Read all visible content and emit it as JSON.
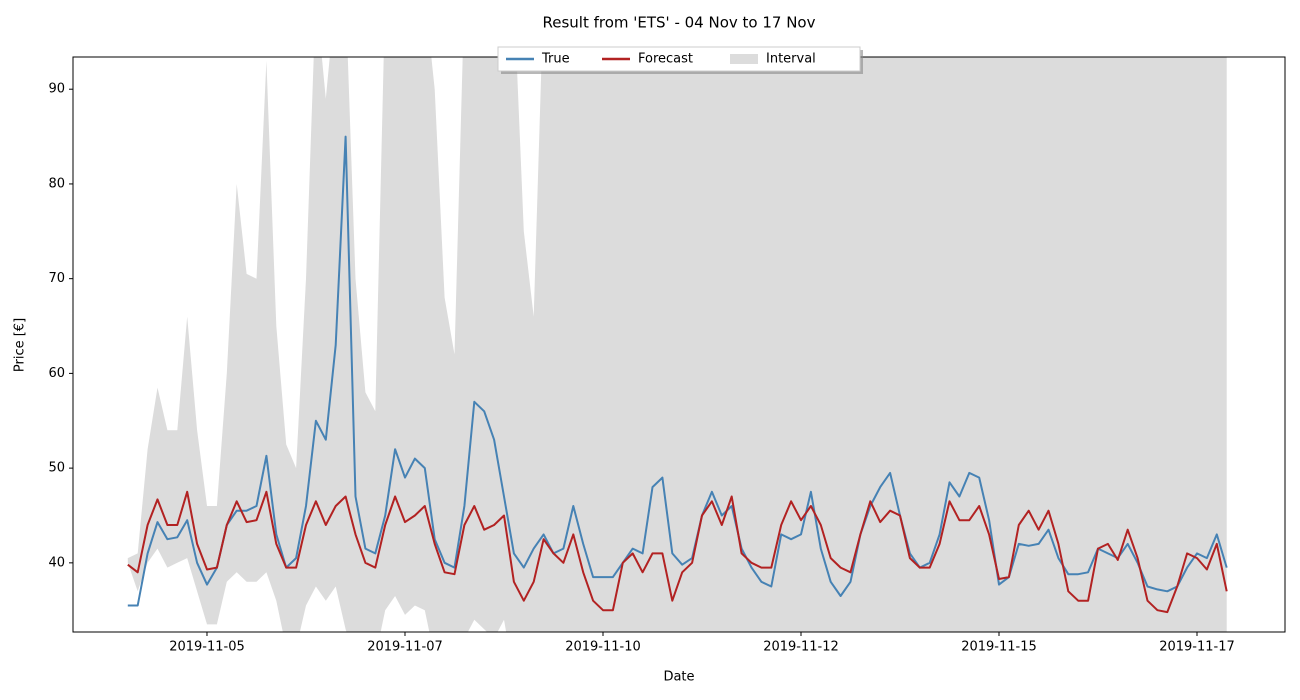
{
  "chart_data": {
    "type": "line",
    "title": "Result from 'ETS' - 04 Nov to 17 Nov",
    "xlabel": "Date",
    "ylabel": "Price [€]",
    "x": [
      "2019-11-04 00:00",
      "2019-11-04 03:00",
      "2019-11-04 06:00",
      "2019-11-04 09:00",
      "2019-11-04 12:00",
      "2019-11-04 15:00",
      "2019-11-04 18:00",
      "2019-11-04 21:00",
      "2019-11-05 00:00",
      "2019-11-05 03:00",
      "2019-11-05 06:00",
      "2019-11-05 09:00",
      "2019-11-05 12:00",
      "2019-11-05 15:00",
      "2019-11-05 18:00",
      "2019-11-05 21:00",
      "2019-11-06 00:00",
      "2019-11-06 03:00",
      "2019-11-06 06:00",
      "2019-11-06 09:00",
      "2019-11-06 12:00",
      "2019-11-06 15:00",
      "2019-11-06 18:00",
      "2019-11-06 21:00",
      "2019-11-07 00:00",
      "2019-11-07 03:00",
      "2019-11-07 06:00",
      "2019-11-07 09:00",
      "2019-11-07 12:00",
      "2019-11-07 15:00",
      "2019-11-07 18:00",
      "2019-11-07 21:00",
      "2019-11-08 00:00",
      "2019-11-08 03:00",
      "2019-11-08 06:00",
      "2019-11-08 09:00",
      "2019-11-08 12:00",
      "2019-11-08 15:00",
      "2019-11-08 18:00",
      "2019-11-08 21:00",
      "2019-11-09 00:00",
      "2019-11-09 03:00",
      "2019-11-09 06:00",
      "2019-11-09 09:00",
      "2019-11-09 12:00",
      "2019-11-09 15:00",
      "2019-11-09 18:00",
      "2019-11-09 21:00",
      "2019-11-10 00:00",
      "2019-11-10 03:00",
      "2019-11-10 06:00",
      "2019-11-10 09:00",
      "2019-11-10 12:00",
      "2019-11-10 15:00",
      "2019-11-10 18:00",
      "2019-11-10 21:00",
      "2019-11-11 00:00",
      "2019-11-11 03:00",
      "2019-11-11 06:00",
      "2019-11-11 09:00",
      "2019-11-11 12:00",
      "2019-11-11 15:00",
      "2019-11-11 18:00",
      "2019-11-11 21:00",
      "2019-11-12 00:00",
      "2019-11-12 03:00",
      "2019-11-12 06:00",
      "2019-11-12 09:00",
      "2019-11-12 12:00",
      "2019-11-12 15:00",
      "2019-11-12 18:00",
      "2019-11-12 21:00",
      "2019-11-13 00:00",
      "2019-11-13 03:00",
      "2019-11-13 06:00",
      "2019-11-13 09:00",
      "2019-11-13 12:00",
      "2019-11-13 15:00",
      "2019-11-13 18:00",
      "2019-11-13 21:00",
      "2019-11-14 00:00",
      "2019-11-14 03:00",
      "2019-11-14 06:00",
      "2019-11-14 09:00",
      "2019-11-14 12:00",
      "2019-11-14 15:00",
      "2019-11-14 18:00",
      "2019-11-14 21:00",
      "2019-11-15 00:00",
      "2019-11-15 03:00",
      "2019-11-15 06:00",
      "2019-11-15 09:00",
      "2019-11-15 12:00",
      "2019-11-15 15:00",
      "2019-11-15 18:00",
      "2019-11-15 21:00",
      "2019-11-16 00:00",
      "2019-11-16 03:00",
      "2019-11-16 06:00",
      "2019-11-16 09:00",
      "2019-11-16 12:00",
      "2019-11-16 15:00",
      "2019-11-16 18:00",
      "2019-11-16 21:00",
      "2019-11-17 00:00",
      "2019-11-17 03:00",
      "2019-11-17 06:00",
      "2019-11-17 09:00",
      "2019-11-17 12:00",
      "2019-11-17 15:00",
      "2019-11-17 18:00",
      "2019-11-17 21:00"
    ],
    "series": [
      {
        "name": "True",
        "color": "#4682b4",
        "values": [
          35.5,
          35.5,
          41,
          44.3,
          42.5,
          42.7,
          44.5,
          40,
          37.7,
          39.5,
          44,
          45.5,
          45.5,
          46,
          51.3,
          43,
          39.5,
          40.5,
          46,
          55,
          53,
          63,
          85,
          47,
          41.5,
          41,
          45,
          52,
          49,
          51,
          50,
          42.5,
          40,
          39.5,
          46,
          57,
          56,
          53,
          47,
          41,
          39.5,
          41.5,
          43,
          41,
          41.5,
          46,
          42,
          38.5,
          38.5,
          38.5,
          40,
          41.5,
          41,
          48,
          49,
          41,
          39.8,
          40.5,
          45,
          47.5,
          45,
          46,
          41.5,
          39.5,
          38,
          37.5,
          43,
          42.5,
          43,
          47.5,
          41.5,
          38,
          36.5,
          38,
          43,
          46,
          48,
          49.5,
          45,
          41,
          39.5,
          40,
          43,
          48.5,
          47,
          49.5,
          49,
          44.5,
          37.7,
          38.5,
          42,
          41.8,
          42,
          43.5,
          40.5,
          38.8,
          38.8,
          39,
          41.5,
          41,
          40.5,
          42,
          40,
          37.5,
          37.2,
          37,
          37.5,
          39.5,
          41,
          40.5,
          43,
          39.5
        ]
      },
      {
        "name": "Forecast",
        "color": "#b22222",
        "values": [
          39.8,
          39,
          44,
          46.7,
          44,
          44,
          47.5,
          42,
          39.3,
          39.5,
          44,
          46.5,
          44.3,
          44.5,
          47.5,
          42,
          39.5,
          39.5,
          44,
          46.5,
          44,
          46,
          47,
          43,
          40,
          39.5,
          44,
          47,
          44.3,
          45,
          46,
          42,
          39,
          38.8,
          44,
          46,
          43.5,
          44,
          45,
          38,
          36,
          38,
          42.5,
          41,
          40,
          43,
          39,
          36,
          35,
          35,
          40,
          41,
          39,
          41,
          41,
          36,
          39,
          40,
          45,
          46.5,
          44,
          47,
          41,
          40,
          39.5,
          39.5,
          44,
          46.5,
          44.5,
          46,
          44,
          40.5,
          39.5,
          39,
          43,
          46.5,
          44.3,
          45.5,
          45,
          40.5,
          39.5,
          39.5,
          42,
          46.5,
          44.5,
          44.5,
          46,
          43,
          38.3,
          38.5,
          44,
          45.5,
          43.5,
          45.5,
          42,
          37,
          36,
          36,
          41.5,
          42,
          40.3,
          43.5,
          40.5,
          36,
          35,
          34.8,
          37.5,
          41,
          40.5,
          39.3,
          42,
          37
        ]
      },
      {
        "name": "Interval",
        "color": "#dcdcdc",
        "lower": [
          40,
          37,
          40,
          41.5,
          39.5,
          40,
          40.5,
          37,
          33.5,
          33.5,
          38,
          39,
          38,
          38,
          39,
          36,
          31,
          31,
          35.5,
          37.5,
          36,
          37.5,
          33,
          30,
          30,
          30,
          35,
          36.5,
          34.5,
          35.5,
          35,
          30,
          30,
          30,
          32,
          34,
          33,
          32,
          34,
          28,
          28,
          28,
          28,
          28,
          28,
          28,
          28,
          28,
          28,
          28,
          28,
          28,
          28,
          28,
          28,
          28,
          28,
          28,
          28,
          28,
          28,
          28,
          28,
          28,
          28,
          28,
          28,
          28,
          28,
          28,
          28,
          28,
          28,
          28,
          28,
          28,
          28,
          28,
          28,
          28,
          28,
          28,
          28,
          28,
          28,
          28,
          28,
          28,
          28,
          28,
          28,
          28,
          28,
          28,
          28,
          28,
          28,
          28,
          28,
          28,
          28,
          28,
          28,
          28,
          28,
          28,
          28,
          28,
          28,
          28,
          28,
          28
        ],
        "upper": [
          40.5,
          41,
          52,
          58.5,
          54,
          54,
          66,
          54,
          46,
          46,
          60,
          80,
          70.5,
          70,
          93,
          65,
          52.5,
          50,
          70,
          100,
          89,
          100,
          100,
          70,
          58,
          56,
          100,
          100,
          100,
          100,
          100,
          90,
          68,
          62,
          100,
          100,
          100,
          100,
          100,
          100,
          75,
          66,
          100,
          100,
          100,
          100,
          100,
          100,
          100,
          100,
          100,
          100,
          100,
          100,
          100,
          100,
          100,
          100,
          100,
          100,
          100,
          100,
          100,
          100,
          100,
          100,
          100,
          100,
          100,
          100,
          100,
          100,
          100,
          100,
          100,
          100,
          100,
          100,
          100,
          100,
          100,
          100,
          100,
          100,
          100,
          100,
          100,
          100,
          100,
          100,
          100,
          100,
          100,
          100,
          100,
          100,
          100,
          100,
          100,
          100,
          100,
          100,
          100,
          100,
          100,
          100,
          100,
          100,
          100,
          100,
          100,
          100
        ]
      }
    ],
    "xlim": [
      "2019-11-03 07:24",
      "2019-11-18 14:40"
    ],
    "xticks": [
      {
        "value": "2019-11-05 00:00",
        "label": "2019-11-05"
      },
      {
        "value": "2019-11-07 12:00",
        "label": "2019-11-07"
      },
      {
        "value": "2019-11-10 00:00",
        "label": "2019-11-10"
      },
      {
        "value": "2019-11-12 12:00",
        "label": "2019-11-12"
      },
      {
        "value": "2019-11-15 00:00",
        "label": "2019-11-15"
      },
      {
        "value": "2019-11-17 12:00",
        "label": "2019-11-17"
      }
    ],
    "ylim": [
      32.7,
      93.4
    ],
    "yticks": [
      40,
      50,
      60,
      70,
      80,
      90
    ],
    "grid": false,
    "legend": "upper center"
  }
}
